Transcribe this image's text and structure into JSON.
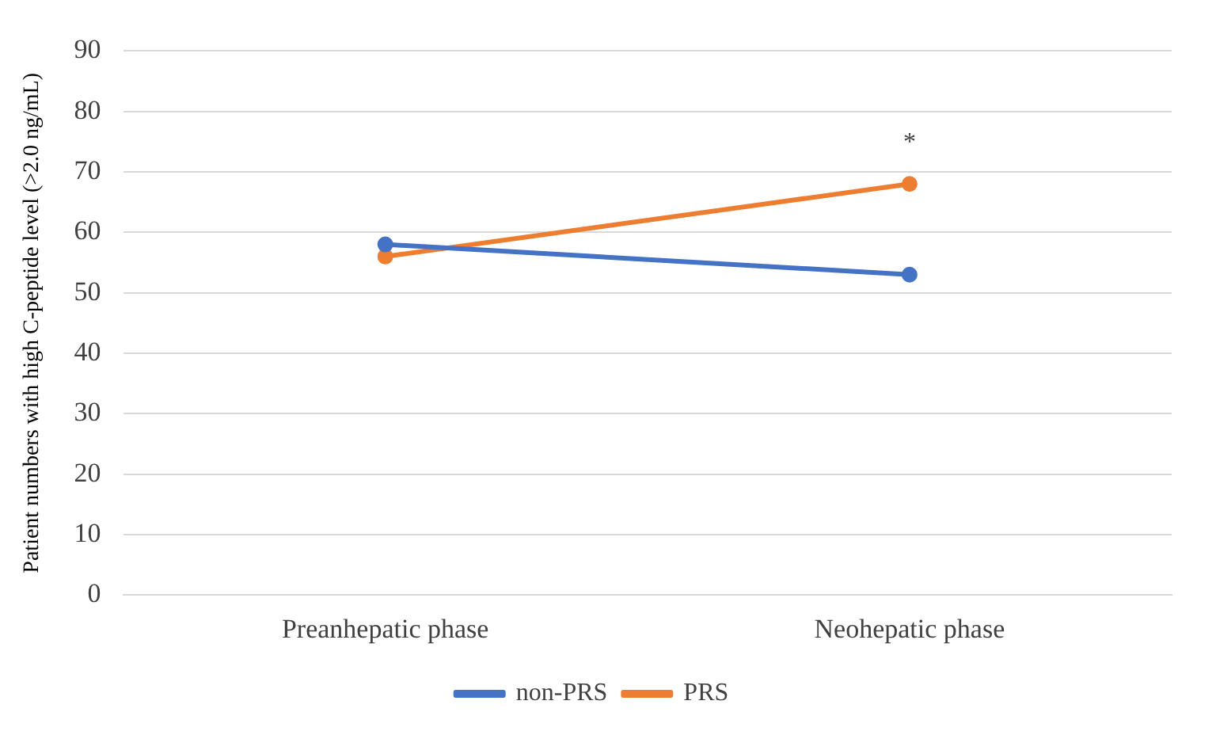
{
  "chart_data": {
    "type": "line",
    "ylabel": "Patient numbers with high C-peptide level (>2.0 ng/mL)",
    "categories": [
      "Preanhepatic phase",
      "Neohepatic phase"
    ],
    "series": [
      {
        "name": "non-PRS",
        "color": "#4472c4",
        "values": [
          58,
          53
        ]
      },
      {
        "name": "PRS",
        "color": "#ed7d31",
        "values": [
          56,
          68
        ]
      }
    ],
    "ylim": [
      0,
      90
    ],
    "yticks": [
      0,
      10,
      20,
      30,
      40,
      50,
      60,
      70,
      80,
      90
    ],
    "grid": "y",
    "legend": "bottom",
    "marker": "circle",
    "line_style": "solid",
    "annotations": [
      "*"
    ]
  }
}
